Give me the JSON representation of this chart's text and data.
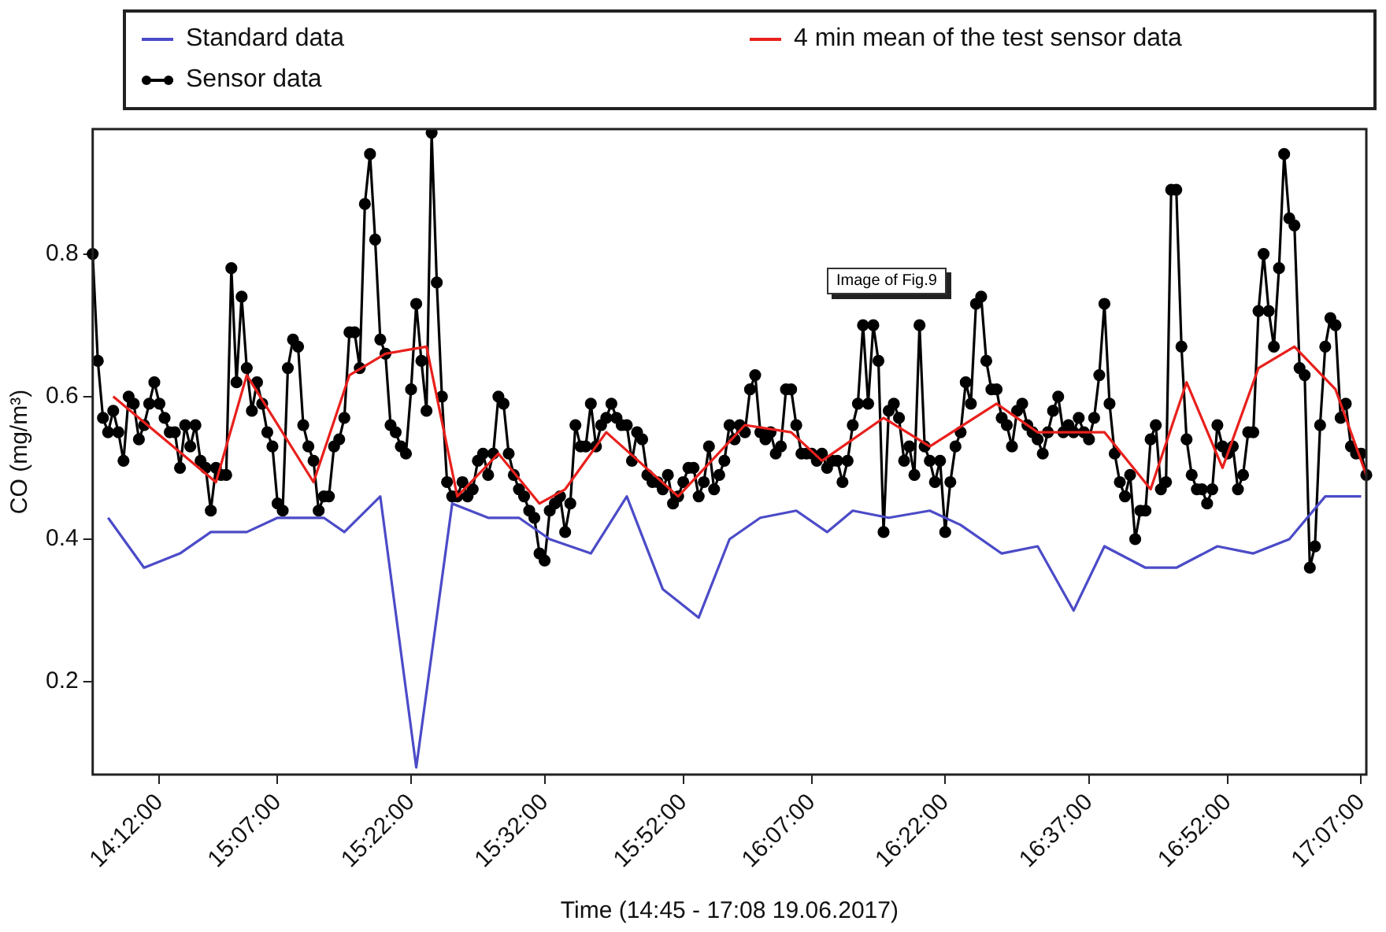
{
  "chart_data": {
    "type": "line",
    "xlabel": "Time (14:45 - 17:08 19.06.2017)",
    "ylabel": "CO (mg/m³)",
    "annotations": [
      "Image of Fig.9"
    ],
    "categories": [
      null,
      null,
      null,
      null,
      null,
      null,
      null,
      null,
      null,
      null,
      null,
      null,
      null,
      "14:12:00",
      null,
      null,
      null,
      null,
      null,
      null,
      null,
      null,
      null,
      null,
      null,
      null,
      null,
      null,
      null,
      null,
      null,
      null,
      null,
      null,
      null,
      null,
      "15:07:00",
      null,
      null,
      null,
      null,
      null,
      null,
      null,
      null,
      null,
      null,
      null,
      null,
      null,
      null,
      null,
      null,
      null,
      null,
      null,
      null,
      null,
      null,
      null,
      null,
      null,
      "15:22:00",
      null,
      null,
      null,
      null,
      null,
      null,
      null,
      null,
      null,
      null,
      null,
      null,
      null,
      null,
      null,
      null,
      null,
      null,
      null,
      null,
      null,
      null,
      null,
      null,
      null,
      "15:32:00",
      null,
      null,
      null,
      null,
      null,
      null,
      null,
      null,
      null,
      null,
      null,
      null,
      null,
      null,
      null,
      null,
      null,
      null,
      null,
      null,
      null,
      null,
      null,
      null,
      null,
      null,
      "15:52:00",
      null,
      null,
      null,
      null,
      null,
      null,
      null,
      null,
      null,
      null,
      null,
      null,
      null,
      null,
      null,
      null,
      null,
      null,
      null,
      null,
      null,
      null,
      null,
      null,
      "16:07:00",
      null,
      null,
      null,
      null,
      null,
      null,
      null,
      null,
      null,
      null,
      null,
      null,
      null,
      null,
      null,
      null,
      null,
      null,
      null,
      null,
      null,
      null,
      null,
      null,
      null,
      "16:22:00",
      null,
      null,
      null,
      null,
      null,
      null,
      null,
      null,
      null,
      null,
      null,
      null,
      null,
      null,
      null,
      null,
      null,
      null,
      null,
      null,
      null,
      null,
      null,
      null,
      null,
      null,
      null,
      "16:37:00",
      null,
      null,
      null,
      null,
      null,
      null,
      null,
      null,
      null,
      null,
      null,
      null,
      null,
      null,
      null,
      null,
      null,
      null,
      null,
      null,
      null,
      null,
      null,
      null,
      null,
      null,
      "16:52:00",
      null,
      null,
      null,
      null,
      null,
      null,
      null,
      null,
      null,
      null,
      null,
      null,
      null,
      null,
      null,
      null,
      null,
      null,
      null,
      null,
      null,
      null,
      null,
      null,
      null,
      "17:07:00",
      null
    ],
    "ylim": [
      0.07,
      0.975
    ],
    "yticks": [
      0.2,
      0.4,
      0.6,
      0.8
    ],
    "grid": false,
    "legend": "top",
    "series": [
      {
        "name": "Standard data",
        "color": "#4b4bc8",
        "marker": "none",
        "values": [
          null,
          null,
          null,
          0.43,
          null,
          null,
          null,
          null,
          null,
          null,
          0.36,
          null,
          null,
          null,
          null,
          null,
          null,
          0.38,
          null,
          null,
          null,
          null,
          null,
          0.41,
          null,
          null,
          null,
          null,
          null,
          null,
          0.41,
          null,
          null,
          null,
          null,
          null,
          0.43,
          null,
          null,
          null,
          null,
          null,
          null,
          null,
          null,
          0.43,
          null,
          null,
          null,
          0.41,
          null,
          null,
          null,
          null,
          null,
          null,
          0.46,
          null,
          null,
          null,
          null,
          null,
          null,
          0.08,
          null,
          null,
          null,
          null,
          null,
          null,
          0.45,
          null,
          null,
          null,
          null,
          null,
          null,
          0.43,
          null,
          null,
          null,
          null,
          null,
          0.43,
          null,
          null,
          null,
          null,
          null,
          0.4,
          null,
          null,
          null,
          null,
          null,
          null,
          null,
          0.38,
          null,
          null,
          null,
          null,
          null,
          null,
          0.46,
          null,
          null,
          null,
          null,
          null,
          null,
          0.33,
          null,
          null,
          null,
          null,
          null,
          null,
          0.29,
          null,
          null,
          null,
          null,
          null,
          0.4,
          null,
          null,
          null,
          null,
          null,
          0.43,
          null,
          null,
          null,
          null,
          null,
          null,
          0.44,
          null,
          null,
          null,
          null,
          null,
          0.41,
          null,
          null,
          null,
          null,
          0.44,
          null,
          null,
          null,
          null,
          null,
          null,
          0.43,
          null,
          null,
          null,
          null,
          null,
          null,
          null,
          0.44,
          null,
          null,
          null,
          null,
          null,
          0.42,
          null,
          null,
          null,
          null,
          null,
          null,
          null,
          0.38,
          null,
          null,
          null,
          null,
          null,
          null,
          0.39,
          null,
          null,
          null,
          null,
          null,
          null,
          0.3,
          null,
          null,
          null,
          null,
          null,
          0.39,
          null,
          null,
          null,
          null,
          null,
          null,
          null,
          0.36,
          null,
          null,
          null,
          null,
          null,
          0.36,
          null,
          null,
          null,
          null,
          null,
          null,
          null,
          0.39,
          null,
          null,
          null,
          null,
          null,
          null,
          0.38,
          null,
          null,
          null,
          null,
          null,
          null,
          0.4,
          null,
          null,
          null,
          null,
          null,
          null,
          0.46,
          null,
          null,
          null,
          null,
          null,
          null,
          0.46,
          null
        ]
      },
      {
        "name": "4 min mean of the test sensor data",
        "color": "#e8201c",
        "marker": "none",
        "values": [
          null,
          null,
          null,
          null,
          0.6,
          null,
          null,
          null,
          null,
          null,
          null,
          null,
          null,
          null,
          null,
          null,
          null,
          null,
          null,
          null,
          null,
          null,
          null,
          null,
          0.48,
          null,
          null,
          null,
          null,
          null,
          0.63,
          null,
          null,
          null,
          null,
          null,
          null,
          null,
          null,
          null,
          null,
          null,
          null,
          0.48,
          null,
          null,
          null,
          null,
          null,
          null,
          0.63,
          null,
          null,
          null,
          null,
          null,
          null,
          0.66,
          null,
          null,
          null,
          null,
          null,
          null,
          null,
          0.67,
          null,
          null,
          null,
          null,
          null,
          0.46,
          null,
          null,
          null,
          null,
          null,
          null,
          null,
          0.52,
          null,
          null,
          null,
          null,
          null,
          null,
          null,
          0.45,
          null,
          null,
          null,
          null,
          0.47,
          null,
          null,
          null,
          null,
          null,
          null,
          null,
          0.55,
          null,
          null,
          null,
          null,
          null,
          null,
          null,
          null,
          null,
          null,
          null,
          null,
          null,
          0.46,
          null,
          null,
          null,
          null,
          null,
          null,
          null,
          null,
          null,
          null,
          null,
          null,
          0.56,
          null,
          null,
          null,
          null,
          null,
          null,
          null,
          null,
          0.55,
          null,
          null,
          null,
          null,
          null,
          0.51,
          null,
          null,
          null,
          null,
          null,
          null,
          null,
          null,
          null,
          null,
          null,
          0.57,
          null,
          null,
          null,
          null,
          null,
          null,
          null,
          null,
          0.53,
          null,
          null,
          null,
          null,
          null,
          null,
          null,
          null,
          null,
          null,
          null,
          null,
          0.59,
          null,
          null,
          null,
          null,
          null,
          null,
          null,
          0.55,
          null,
          null,
          null,
          null,
          null,
          null,
          null,
          null,
          null,
          null,
          null,
          null,
          0.55,
          null,
          null,
          null,
          null,
          null,
          null,
          null,
          null,
          0.47,
          null,
          null,
          null,
          null,
          null,
          null,
          0.62,
          null,
          null,
          null,
          null,
          null,
          null,
          0.5,
          null,
          null,
          null,
          null,
          null,
          null,
          0.64,
          null,
          null,
          null,
          null,
          null,
          null,
          0.67,
          null,
          null,
          null,
          null,
          null,
          null,
          null,
          0.61,
          null,
          null,
          null,
          null,
          null,
          0.49
        ]
      },
      {
        "name": "Sensor data",
        "color": "#000000",
        "marker": "circle",
        "values": [
          0.8,
          0.65,
          0.57,
          0.55,
          0.58,
          0.55,
          0.51,
          0.6,
          0.59,
          0.54,
          0.56,
          0.59,
          0.62,
          0.59,
          0.57,
          0.55,
          0.55,
          0.5,
          0.56,
          0.53,
          0.56,
          0.51,
          0.5,
          0.44,
          0.5,
          0.49,
          0.49,
          0.78,
          0.62,
          0.74,
          0.64,
          0.58,
          0.62,
          0.59,
          0.55,
          0.53,
          0.45,
          0.44,
          0.64,
          0.68,
          0.67,
          0.56,
          0.53,
          0.51,
          0.44,
          0.46,
          0.46,
          0.53,
          0.54,
          0.57,
          0.69,
          0.69,
          0.64,
          0.87,
          0.94,
          0.82,
          0.68,
          0.66,
          0.56,
          0.55,
          0.53,
          0.52,
          0.61,
          0.73,
          0.65,
          0.58,
          0.97,
          0.76,
          0.6,
          0.48,
          0.46,
          0.46,
          0.48,
          0.46,
          0.47,
          0.51,
          0.52,
          0.49,
          0.52,
          0.6,
          0.59,
          0.52,
          0.49,
          0.47,
          0.46,
          0.44,
          0.43,
          0.38,
          0.37,
          0.44,
          0.45,
          0.46,
          0.41,
          0.45,
          0.56,
          0.53,
          0.53,
          0.59,
          0.53,
          0.56,
          0.57,
          0.59,
          0.57,
          0.56,
          0.56,
          0.51,
          0.55,
          0.54,
          0.49,
          0.48,
          0.48,
          0.47,
          0.49,
          0.45,
          0.46,
          0.48,
          0.5,
          0.5,
          0.46,
          0.48,
          0.53,
          0.47,
          0.49,
          0.51,
          0.56,
          0.54,
          0.56,
          0.55,
          0.61,
          0.63,
          0.55,
          0.54,
          0.55,
          0.52,
          0.53,
          0.61,
          0.61,
          0.56,
          0.52,
          0.52,
          0.52,
          0.51,
          0.52,
          0.5,
          0.51,
          0.51,
          0.48,
          0.51,
          0.56,
          0.59,
          0.7,
          0.59,
          0.7,
          0.65,
          0.41,
          0.58,
          0.59,
          0.57,
          0.51,
          0.53,
          0.49,
          0.7,
          0.53,
          0.51,
          0.48,
          0.51,
          0.41,
          0.48,
          0.53,
          0.55,
          0.62,
          0.59,
          0.73,
          0.74,
          0.65,
          0.61,
          0.61,
          0.57,
          0.56,
          0.53,
          0.58,
          0.59,
          0.56,
          0.55,
          0.54,
          0.52,
          0.55,
          0.58,
          0.6,
          0.55,
          0.56,
          0.55,
          0.57,
          0.55,
          0.54,
          0.57,
          0.63,
          0.73,
          0.59,
          0.52,
          0.48,
          0.46,
          0.49,
          0.4,
          0.44,
          0.44,
          0.54,
          0.56,
          0.47,
          0.48,
          0.89,
          0.89,
          0.67,
          0.54,
          0.49,
          0.47,
          0.47,
          0.45,
          0.47,
          0.56,
          0.53,
          0.52,
          0.53,
          0.47,
          0.49,
          0.55,
          0.55,
          0.72,
          0.8,
          0.72,
          0.67,
          0.78,
          0.94,
          0.85,
          0.84,
          0.64,
          0.63,
          0.36,
          0.39,
          0.56,
          0.67,
          0.71,
          0.7,
          0.57,
          0.59,
          0.53,
          0.52,
          0.52,
          0.49
        ]
      }
    ]
  }
}
